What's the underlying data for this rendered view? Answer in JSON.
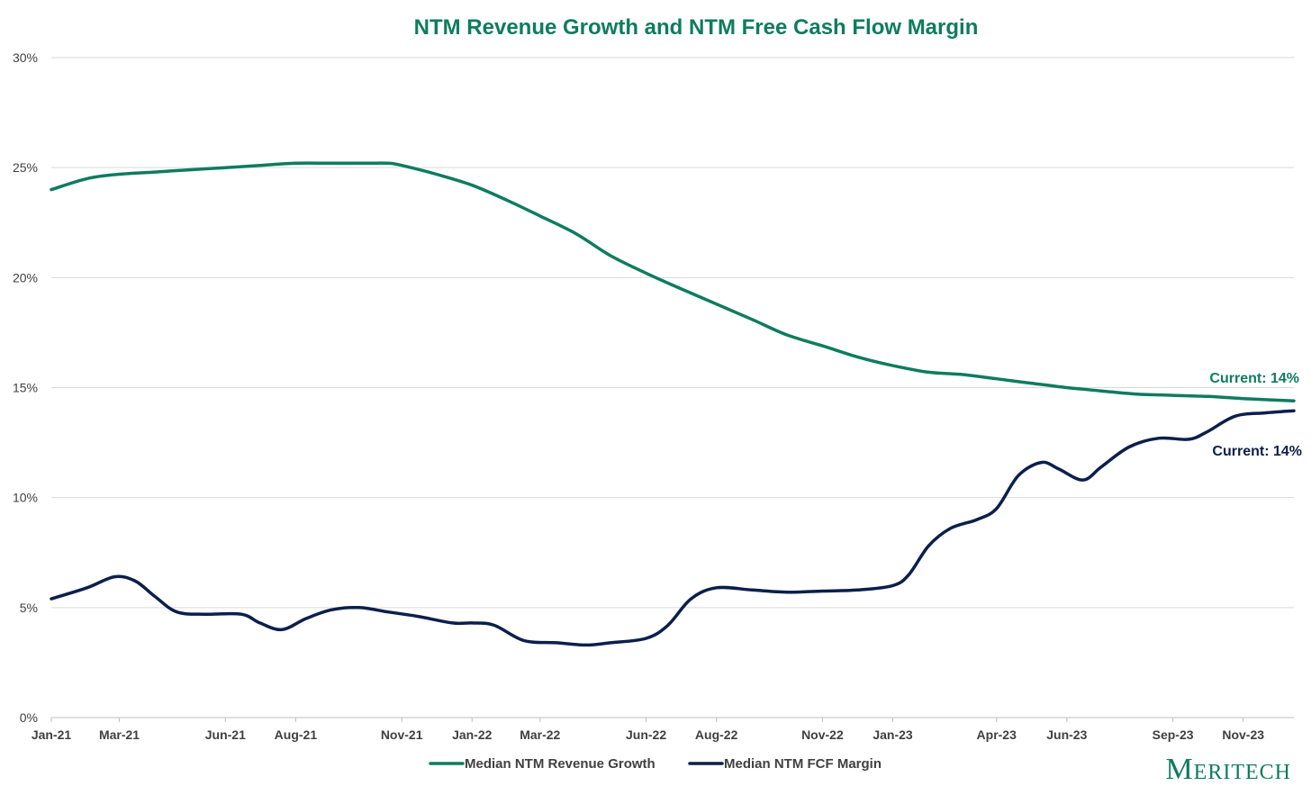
{
  "chart_data": {
    "type": "line",
    "title": "NTM Revenue Growth and NTM Free Cash Flow Margin",
    "xlabel": "",
    "ylabel": "",
    "x_range": [
      "2021-01-01",
      "2023-12-15"
    ],
    "ylim": [
      0,
      30
    ],
    "y_ticks": [
      "0%",
      "5%",
      "10%",
      "15%",
      "20%",
      "25%",
      "30%"
    ],
    "x_ticks": [
      "Jan-21",
      "Mar-21",
      "Jun-21",
      "Aug-21",
      "Nov-21",
      "Jan-22",
      "Mar-22",
      "Jun-22",
      "Aug-22",
      "Nov-22",
      "Jan-23",
      "Apr-23",
      "Jun-23",
      "Sep-23",
      "Nov-23"
    ],
    "x_tick_dates": [
      "2021-01-01",
      "2021-03-01",
      "2021-06-01",
      "2021-08-01",
      "2021-11-01",
      "2022-01-01",
      "2022-03-01",
      "2022-06-01",
      "2022-08-01",
      "2022-11-01",
      "2023-01-01",
      "2023-04-01",
      "2023-06-01",
      "2023-09-01",
      "2023-11-01"
    ],
    "grid": "horizontal",
    "legend_position": "bottom",
    "series": [
      {
        "name": "Median NTM Revenue Growth",
        "color": "#0e7c5f",
        "annotation": "Current: 14%",
        "points": [
          [
            "2021-01-01",
            24.0
          ],
          [
            "2021-02-01",
            24.5
          ],
          [
            "2021-03-01",
            24.7
          ],
          [
            "2021-04-01",
            24.8
          ],
          [
            "2021-05-01",
            24.9
          ],
          [
            "2021-06-01",
            25.0
          ],
          [
            "2021-07-01",
            25.1
          ],
          [
            "2021-08-01",
            25.2
          ],
          [
            "2021-09-01",
            25.2
          ],
          [
            "2021-10-01",
            25.2
          ],
          [
            "2021-10-20",
            25.2
          ],
          [
            "2021-11-01",
            25.1
          ],
          [
            "2021-12-01",
            24.7
          ],
          [
            "2022-01-01",
            24.2
          ],
          [
            "2022-02-01",
            23.5
          ],
          [
            "2022-03-01",
            22.8
          ],
          [
            "2022-04-01",
            22.0
          ],
          [
            "2022-05-01",
            21.0
          ],
          [
            "2022-06-01",
            20.2
          ],
          [
            "2022-07-01",
            19.5
          ],
          [
            "2022-08-01",
            18.8
          ],
          [
            "2022-09-01",
            18.1
          ],
          [
            "2022-10-01",
            17.4
          ],
          [
            "2022-11-01",
            16.9
          ],
          [
            "2022-12-01",
            16.4
          ],
          [
            "2023-01-01",
            16.0
          ],
          [
            "2023-02-01",
            15.7
          ],
          [
            "2023-03-01",
            15.6
          ],
          [
            "2023-04-01",
            15.4
          ],
          [
            "2023-05-01",
            15.2
          ],
          [
            "2023-06-01",
            15.0
          ],
          [
            "2023-07-01",
            14.85
          ],
          [
            "2023-08-01",
            14.7
          ],
          [
            "2023-09-01",
            14.65
          ],
          [
            "2023-10-01",
            14.6
          ],
          [
            "2023-11-01",
            14.5
          ],
          [
            "2023-12-15",
            14.4
          ]
        ]
      },
      {
        "name": "Median NTM FCF Margin",
        "color": "#0b1f4b",
        "annotation": "Current: 14%",
        "points": [
          [
            "2021-01-01",
            5.4
          ],
          [
            "2021-02-01",
            5.9
          ],
          [
            "2021-02-25",
            6.4
          ],
          [
            "2021-03-15",
            6.2
          ],
          [
            "2021-04-01",
            5.5
          ],
          [
            "2021-04-20",
            4.8
          ],
          [
            "2021-05-15",
            4.7
          ],
          [
            "2021-06-15",
            4.7
          ],
          [
            "2021-07-01",
            4.3
          ],
          [
            "2021-07-20",
            4.0
          ],
          [
            "2021-08-10",
            4.5
          ],
          [
            "2021-09-01",
            4.9
          ],
          [
            "2021-09-25",
            5.0
          ],
          [
            "2021-10-20",
            4.8
          ],
          [
            "2021-11-15",
            4.6
          ],
          [
            "2021-12-15",
            4.3
          ],
          [
            "2022-01-01",
            4.3
          ],
          [
            "2022-01-20",
            4.2
          ],
          [
            "2022-02-15",
            3.5
          ],
          [
            "2022-03-15",
            3.4
          ],
          [
            "2022-04-10",
            3.3
          ],
          [
            "2022-05-01",
            3.4
          ],
          [
            "2022-06-01",
            3.6
          ],
          [
            "2022-06-20",
            4.2
          ],
          [
            "2022-07-10",
            5.4
          ],
          [
            "2022-08-01",
            5.9
          ],
          [
            "2022-09-01",
            5.8
          ],
          [
            "2022-10-01",
            5.7
          ],
          [
            "2022-11-01",
            5.75
          ],
          [
            "2022-12-01",
            5.8
          ],
          [
            "2023-01-01",
            6.0
          ],
          [
            "2023-01-15",
            6.5
          ],
          [
            "2023-02-01",
            7.8
          ],
          [
            "2023-02-20",
            8.6
          ],
          [
            "2023-03-15",
            9.0
          ],
          [
            "2023-04-01",
            9.5
          ],
          [
            "2023-04-20",
            11.0
          ],
          [
            "2023-05-10",
            11.6
          ],
          [
            "2023-05-25",
            11.3
          ],
          [
            "2023-06-15",
            10.8
          ],
          [
            "2023-07-01",
            11.4
          ],
          [
            "2023-07-25",
            12.3
          ],
          [
            "2023-08-20",
            12.7
          ],
          [
            "2023-09-15",
            12.65
          ],
          [
            "2023-10-01",
            13.0
          ],
          [
            "2023-10-25",
            13.7
          ],
          [
            "2023-11-20",
            13.85
          ],
          [
            "2023-12-15",
            13.95
          ]
        ]
      }
    ],
    "brand": "Meritech"
  }
}
